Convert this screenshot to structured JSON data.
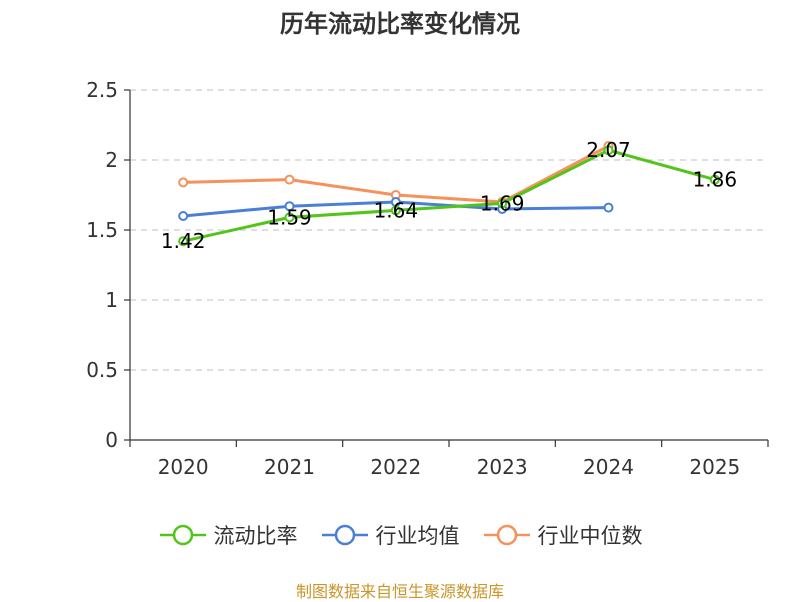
{
  "chart_data": {
    "type": "line",
    "title": "历年流动比率变化情况",
    "categories": [
      "2020",
      "2021",
      "2022",
      "2023",
      "2024",
      "2025"
    ],
    "y_ticks": [
      "0",
      "0.5",
      "1",
      "1.5",
      "2",
      "2.5"
    ],
    "ylim": [
      0,
      2.5
    ],
    "grid": true,
    "legend_position": "bottom",
    "series": [
      {
        "name": "流动比率",
        "color": "#52c41a",
        "values": [
          1.42,
          1.59,
          1.64,
          1.69,
          2.07,
          1.86
        ],
        "labels": [
          "1.42",
          "1.59",
          "1.64",
          "1.69",
          "2.07",
          "1.86"
        ]
      },
      {
        "name": "行业均值",
        "color": "#4a7fd8",
        "values": [
          1.6,
          1.67,
          1.7,
          1.65,
          1.66,
          null
        ]
      },
      {
        "name": "行业中位数",
        "color": "#f5915a",
        "values": [
          1.84,
          1.86,
          1.75,
          1.7,
          2.1,
          null
        ]
      }
    ]
  },
  "source": "制图数据来自恒生聚源数据库"
}
